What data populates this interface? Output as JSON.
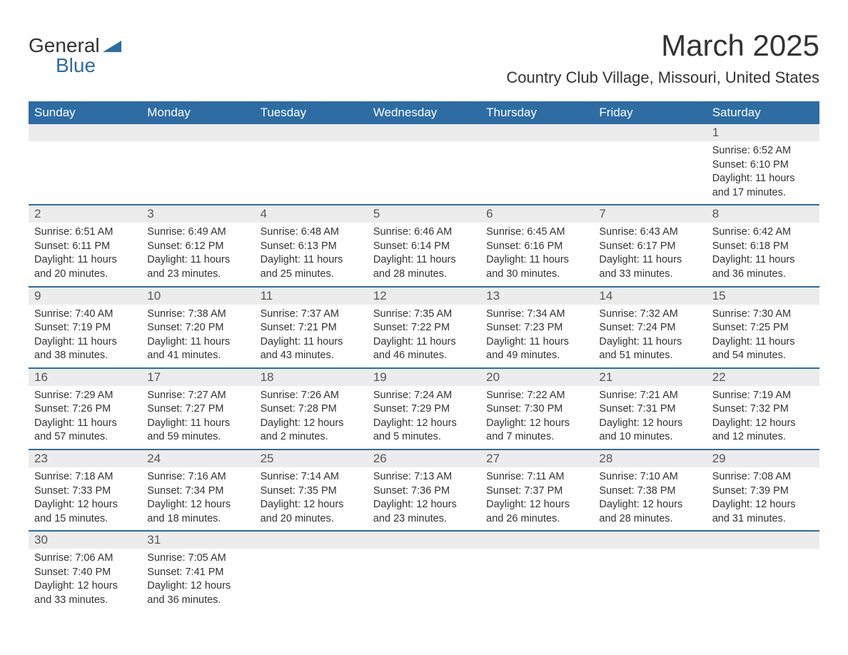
{
  "logo": {
    "text1": "General",
    "text2": "Blue"
  },
  "title": "March 2025",
  "location": "Country Club Village, Missouri, United States",
  "colors": {
    "header_bg": "#2e6ca4",
    "header_text": "#ffffff",
    "daynum_bg": "#ececec",
    "border": "#2e6ca4",
    "text": "#333333"
  },
  "day_labels": [
    "Sunday",
    "Monday",
    "Tuesday",
    "Wednesday",
    "Thursday",
    "Friday",
    "Saturday"
  ],
  "weeks": [
    [
      {
        "empty": true
      },
      {
        "empty": true
      },
      {
        "empty": true
      },
      {
        "empty": true
      },
      {
        "empty": true
      },
      {
        "empty": true
      },
      {
        "day": "1",
        "sunrise": "Sunrise: 6:52 AM",
        "sunset": "Sunset: 6:10 PM",
        "daylight1": "Daylight: 11 hours",
        "daylight2": "and 17 minutes."
      }
    ],
    [
      {
        "day": "2",
        "sunrise": "Sunrise: 6:51 AM",
        "sunset": "Sunset: 6:11 PM",
        "daylight1": "Daylight: 11 hours",
        "daylight2": "and 20 minutes."
      },
      {
        "day": "3",
        "sunrise": "Sunrise: 6:49 AM",
        "sunset": "Sunset: 6:12 PM",
        "daylight1": "Daylight: 11 hours",
        "daylight2": "and 23 minutes."
      },
      {
        "day": "4",
        "sunrise": "Sunrise: 6:48 AM",
        "sunset": "Sunset: 6:13 PM",
        "daylight1": "Daylight: 11 hours",
        "daylight2": "and 25 minutes."
      },
      {
        "day": "5",
        "sunrise": "Sunrise: 6:46 AM",
        "sunset": "Sunset: 6:14 PM",
        "daylight1": "Daylight: 11 hours",
        "daylight2": "and 28 minutes."
      },
      {
        "day": "6",
        "sunrise": "Sunrise: 6:45 AM",
        "sunset": "Sunset: 6:16 PM",
        "daylight1": "Daylight: 11 hours",
        "daylight2": "and 30 minutes."
      },
      {
        "day": "7",
        "sunrise": "Sunrise: 6:43 AM",
        "sunset": "Sunset: 6:17 PM",
        "daylight1": "Daylight: 11 hours",
        "daylight2": "and 33 minutes."
      },
      {
        "day": "8",
        "sunrise": "Sunrise: 6:42 AM",
        "sunset": "Sunset: 6:18 PM",
        "daylight1": "Daylight: 11 hours",
        "daylight2": "and 36 minutes."
      }
    ],
    [
      {
        "day": "9",
        "sunrise": "Sunrise: 7:40 AM",
        "sunset": "Sunset: 7:19 PM",
        "daylight1": "Daylight: 11 hours",
        "daylight2": "and 38 minutes."
      },
      {
        "day": "10",
        "sunrise": "Sunrise: 7:38 AM",
        "sunset": "Sunset: 7:20 PM",
        "daylight1": "Daylight: 11 hours",
        "daylight2": "and 41 minutes."
      },
      {
        "day": "11",
        "sunrise": "Sunrise: 7:37 AM",
        "sunset": "Sunset: 7:21 PM",
        "daylight1": "Daylight: 11 hours",
        "daylight2": "and 43 minutes."
      },
      {
        "day": "12",
        "sunrise": "Sunrise: 7:35 AM",
        "sunset": "Sunset: 7:22 PM",
        "daylight1": "Daylight: 11 hours",
        "daylight2": "and 46 minutes."
      },
      {
        "day": "13",
        "sunrise": "Sunrise: 7:34 AM",
        "sunset": "Sunset: 7:23 PM",
        "daylight1": "Daylight: 11 hours",
        "daylight2": "and 49 minutes."
      },
      {
        "day": "14",
        "sunrise": "Sunrise: 7:32 AM",
        "sunset": "Sunset: 7:24 PM",
        "daylight1": "Daylight: 11 hours",
        "daylight2": "and 51 minutes."
      },
      {
        "day": "15",
        "sunrise": "Sunrise: 7:30 AM",
        "sunset": "Sunset: 7:25 PM",
        "daylight1": "Daylight: 11 hours",
        "daylight2": "and 54 minutes."
      }
    ],
    [
      {
        "day": "16",
        "sunrise": "Sunrise: 7:29 AM",
        "sunset": "Sunset: 7:26 PM",
        "daylight1": "Daylight: 11 hours",
        "daylight2": "and 57 minutes."
      },
      {
        "day": "17",
        "sunrise": "Sunrise: 7:27 AM",
        "sunset": "Sunset: 7:27 PM",
        "daylight1": "Daylight: 11 hours",
        "daylight2": "and 59 minutes."
      },
      {
        "day": "18",
        "sunrise": "Sunrise: 7:26 AM",
        "sunset": "Sunset: 7:28 PM",
        "daylight1": "Daylight: 12 hours",
        "daylight2": "and 2 minutes."
      },
      {
        "day": "19",
        "sunrise": "Sunrise: 7:24 AM",
        "sunset": "Sunset: 7:29 PM",
        "daylight1": "Daylight: 12 hours",
        "daylight2": "and 5 minutes."
      },
      {
        "day": "20",
        "sunrise": "Sunrise: 7:22 AM",
        "sunset": "Sunset: 7:30 PM",
        "daylight1": "Daylight: 12 hours",
        "daylight2": "and 7 minutes."
      },
      {
        "day": "21",
        "sunrise": "Sunrise: 7:21 AM",
        "sunset": "Sunset: 7:31 PM",
        "daylight1": "Daylight: 12 hours",
        "daylight2": "and 10 minutes."
      },
      {
        "day": "22",
        "sunrise": "Sunrise: 7:19 AM",
        "sunset": "Sunset: 7:32 PM",
        "daylight1": "Daylight: 12 hours",
        "daylight2": "and 12 minutes."
      }
    ],
    [
      {
        "day": "23",
        "sunrise": "Sunrise: 7:18 AM",
        "sunset": "Sunset: 7:33 PM",
        "daylight1": "Daylight: 12 hours",
        "daylight2": "and 15 minutes."
      },
      {
        "day": "24",
        "sunrise": "Sunrise: 7:16 AM",
        "sunset": "Sunset: 7:34 PM",
        "daylight1": "Daylight: 12 hours",
        "daylight2": "and 18 minutes."
      },
      {
        "day": "25",
        "sunrise": "Sunrise: 7:14 AM",
        "sunset": "Sunset: 7:35 PM",
        "daylight1": "Daylight: 12 hours",
        "daylight2": "and 20 minutes."
      },
      {
        "day": "26",
        "sunrise": "Sunrise: 7:13 AM",
        "sunset": "Sunset: 7:36 PM",
        "daylight1": "Daylight: 12 hours",
        "daylight2": "and 23 minutes."
      },
      {
        "day": "27",
        "sunrise": "Sunrise: 7:11 AM",
        "sunset": "Sunset: 7:37 PM",
        "daylight1": "Daylight: 12 hours",
        "daylight2": "and 26 minutes."
      },
      {
        "day": "28",
        "sunrise": "Sunrise: 7:10 AM",
        "sunset": "Sunset: 7:38 PM",
        "daylight1": "Daylight: 12 hours",
        "daylight2": "and 28 minutes."
      },
      {
        "day": "29",
        "sunrise": "Sunrise: 7:08 AM",
        "sunset": "Sunset: 7:39 PM",
        "daylight1": "Daylight: 12 hours",
        "daylight2": "and 31 minutes."
      }
    ],
    [
      {
        "day": "30",
        "sunrise": "Sunrise: 7:06 AM",
        "sunset": "Sunset: 7:40 PM",
        "daylight1": "Daylight: 12 hours",
        "daylight2": "and 33 minutes."
      },
      {
        "day": "31",
        "sunrise": "Sunrise: 7:05 AM",
        "sunset": "Sunset: 7:41 PM",
        "daylight1": "Daylight: 12 hours",
        "daylight2": "and 36 minutes."
      },
      {
        "empty": true
      },
      {
        "empty": true
      },
      {
        "empty": true
      },
      {
        "empty": true
      },
      {
        "empty": true
      }
    ]
  ]
}
